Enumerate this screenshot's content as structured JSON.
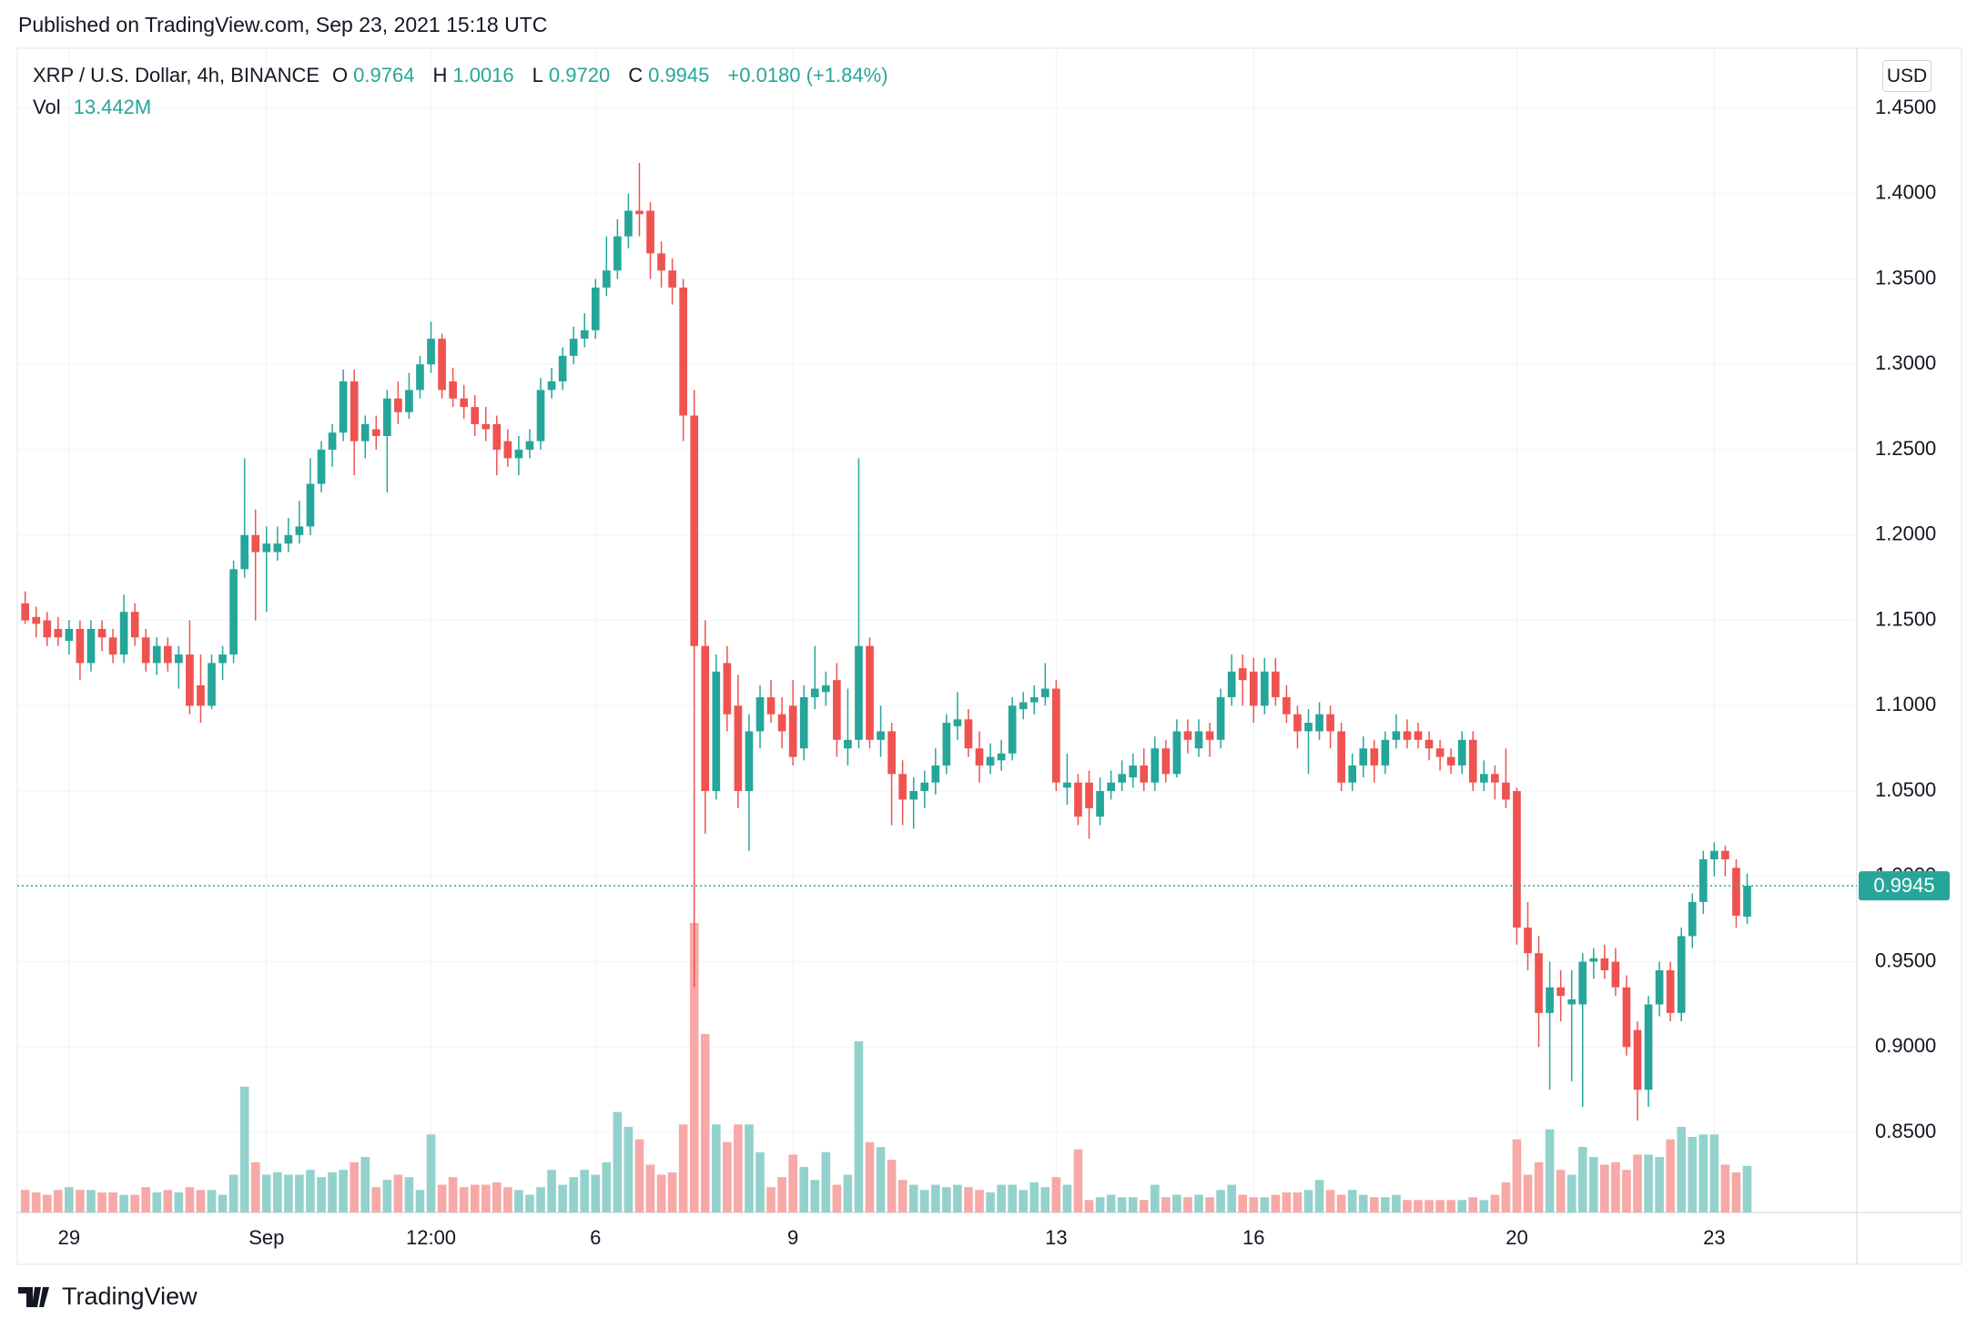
{
  "header": {
    "published": "Published on TradingView.com, Sep 23, 2021 15:18 UTC",
    "symbol": "XRP / U.S. Dollar, 4h, BINANCE",
    "open_label": "O",
    "open": "0.9764",
    "high_label": "H",
    "high": "1.0016",
    "low_label": "L",
    "low": "0.9720",
    "close_label": "C",
    "close": "0.9945",
    "change": "+0.0180 (+1.84%)",
    "vol_label": "Vol",
    "vol": "13.442M",
    "currency": "USD",
    "brand": "TradingView"
  },
  "chart_data": {
    "type": "candlestick",
    "up_color": "#26a69a",
    "down_color": "#ef5350",
    "up_volume_color": "#93d2cc",
    "down_volume_color": "#f7a9a7",
    "grid": true,
    "xlim": [
      -0.72,
      167
    ],
    "ylim": [
      0.8031,
      1.4852
    ],
    "xticks": [
      {
        "value": 4,
        "label": "29"
      },
      {
        "value": 22,
        "label": "Sep"
      },
      {
        "value": 37,
        "label": "12:00"
      },
      {
        "value": 52,
        "label": "6"
      },
      {
        "value": 70,
        "label": "9"
      },
      {
        "value": 94,
        "label": "13"
      },
      {
        "value": 112,
        "label": "16"
      },
      {
        "value": 136,
        "label": "20"
      },
      {
        "value": 154,
        "label": "23"
      }
    ],
    "yticks": [
      {
        "value": 0.85,
        "label": "0.8500"
      },
      {
        "value": 0.9,
        "label": "0.9000"
      },
      {
        "value": 0.95,
        "label": "0.9500"
      },
      {
        "value": 1.0,
        "label": "1.0000"
      },
      {
        "value": 1.05,
        "label": "1.0500"
      },
      {
        "value": 1.1,
        "label": "1.1000"
      },
      {
        "value": 1.15,
        "label": "1.1500"
      },
      {
        "value": 1.2,
        "label": "1.2000"
      },
      {
        "value": 1.25,
        "label": "1.2500"
      },
      {
        "value": 1.3,
        "label": "1.3000"
      },
      {
        "value": 1.35,
        "label": "1.3500"
      },
      {
        "value": 1.4,
        "label": "1.4000"
      },
      {
        "value": 1.45,
        "label": "1.4500"
      }
    ],
    "last_price": {
      "value": 0.9945,
      "label": "0.9945"
    },
    "candles": [
      [
        1.16,
        1.167,
        1.148,
        1.15
      ],
      [
        1.152,
        1.158,
        1.14,
        1.148
      ],
      [
        1.15,
        1.155,
        1.135,
        1.14
      ],
      [
        1.145,
        1.152,
        1.135,
        1.14
      ],
      [
        1.138,
        1.15,
        1.13,
        1.145
      ],
      [
        1.145,
        1.15,
        1.115,
        1.125
      ],
      [
        1.125,
        1.15,
        1.12,
        1.145
      ],
      [
        1.145,
        1.15,
        1.132,
        1.14
      ],
      [
        1.14,
        1.145,
        1.125,
        1.13
      ],
      [
        1.13,
        1.165,
        1.125,
        1.155
      ],
      [
        1.155,
        1.16,
        1.135,
        1.14
      ],
      [
        1.14,
        1.145,
        1.12,
        1.125
      ],
      [
        1.125,
        1.14,
        1.118,
        1.135
      ],
      [
        1.135,
        1.14,
        1.12,
        1.125
      ],
      [
        1.125,
        1.135,
        1.11,
        1.13
      ],
      [
        1.13,
        1.15,
        1.095,
        1.1
      ],
      [
        1.112,
        1.13,
        1.09,
        1.1
      ],
      [
        1.1,
        1.13,
        1.098,
        1.125
      ],
      [
        1.125,
        1.135,
        1.115,
        1.13
      ],
      [
        1.13,
        1.185,
        1.125,
        1.18
      ],
      [
        1.18,
        1.245,
        1.175,
        1.2
      ],
      [
        1.2,
        1.215,
        1.15,
        1.19
      ],
      [
        1.19,
        1.205,
        1.155,
        1.195
      ],
      [
        1.19,
        1.205,
        1.185,
        1.195
      ],
      [
        1.195,
        1.21,
        1.19,
        1.2
      ],
      [
        1.2,
        1.22,
        1.195,
        1.205
      ],
      [
        1.205,
        1.245,
        1.2,
        1.23
      ],
      [
        1.23,
        1.255,
        1.225,
        1.25
      ],
      [
        1.25,
        1.265,
        1.24,
        1.26
      ],
      [
        1.26,
        1.297,
        1.255,
        1.29
      ],
      [
        1.29,
        1.297,
        1.235,
        1.255
      ],
      [
        1.255,
        1.27,
        1.245,
        1.265
      ],
      [
        1.262,
        1.27,
        1.25,
        1.258
      ],
      [
        1.258,
        1.285,
        1.225,
        1.28
      ],
      [
        1.28,
        1.29,
        1.265,
        1.272
      ],
      [
        1.272,
        1.295,
        1.268,
        1.285
      ],
      [
        1.285,
        1.305,
        1.28,
        1.3
      ],
      [
        1.3,
        1.325,
        1.295,
        1.315
      ],
      [
        1.315,
        1.318,
        1.28,
        1.285
      ],
      [
        1.29,
        1.298,
        1.275,
        1.28
      ],
      [
        1.28,
        1.288,
        1.268,
        1.275
      ],
      [
        1.275,
        1.282,
        1.258,
        1.265
      ],
      [
        1.265,
        1.275,
        1.255,
        1.262
      ],
      [
        1.265,
        1.27,
        1.235,
        1.25
      ],
      [
        1.255,
        1.262,
        1.24,
        1.245
      ],
      [
        1.245,
        1.258,
        1.235,
        1.25
      ],
      [
        1.25,
        1.262,
        1.245,
        1.255
      ],
      [
        1.255,
        1.292,
        1.25,
        1.285
      ],
      [
        1.285,
        1.298,
        1.28,
        1.29
      ],
      [
        1.29,
        1.31,
        1.285,
        1.305
      ],
      [
        1.305,
        1.322,
        1.3,
        1.315
      ],
      [
        1.315,
        1.33,
        1.31,
        1.32
      ],
      [
        1.32,
        1.35,
        1.315,
        1.345
      ],
      [
        1.345,
        1.375,
        1.34,
        1.355
      ],
      [
        1.355,
        1.385,
        1.35,
        1.375
      ],
      [
        1.375,
        1.4,
        1.368,
        1.39
      ],
      [
        1.39,
        1.418,
        1.375,
        1.388
      ],
      [
        1.39,
        1.395,
        1.35,
        1.365
      ],
      [
        1.365,
        1.372,
        1.345,
        1.355
      ],
      [
        1.355,
        1.362,
        1.335,
        1.345
      ],
      [
        1.345,
        1.35,
        1.255,
        1.27
      ],
      [
        1.27,
        1.285,
        0.935,
        1.135
      ],
      [
        1.135,
        1.15,
        1.025,
        1.05
      ],
      [
        1.05,
        1.13,
        1.045,
        1.12
      ],
      [
        1.125,
        1.135,
        1.085,
        1.095
      ],
      [
        1.1,
        1.118,
        1.04,
        1.05
      ],
      [
        1.05,
        1.095,
        1.015,
        1.085
      ],
      [
        1.085,
        1.112,
        1.075,
        1.105
      ],
      [
        1.105,
        1.115,
        1.09,
        1.095
      ],
      [
        1.095,
        1.105,
        1.075,
        1.085
      ],
      [
        1.1,
        1.115,
        1.065,
        1.07
      ],
      [
        1.075,
        1.112,
        1.068,
        1.105
      ],
      [
        1.105,
        1.135,
        1.098,
        1.11
      ],
      [
        1.108,
        1.12,
        1.1,
        1.112
      ],
      [
        1.115,
        1.125,
        1.07,
        1.08
      ],
      [
        1.075,
        1.11,
        1.065,
        1.08
      ],
      [
        1.08,
        1.245,
        1.075,
        1.135
      ],
      [
        1.135,
        1.14,
        1.075,
        1.08
      ],
      [
        1.08,
        1.1,
        1.07,
        1.085
      ],
      [
        1.085,
        1.09,
        1.03,
        1.06
      ],
      [
        1.06,
        1.068,
        1.03,
        1.045
      ],
      [
        1.045,
        1.058,
        1.028,
        1.05
      ],
      [
        1.05,
        1.062,
        1.04,
        1.055
      ],
      [
        1.055,
        1.075,
        1.048,
        1.065
      ],
      [
        1.065,
        1.095,
        1.06,
        1.09
      ],
      [
        1.088,
        1.108,
        1.08,
        1.092
      ],
      [
        1.092,
        1.098,
        1.07,
        1.075
      ],
      [
        1.075,
        1.085,
        1.055,
        1.065
      ],
      [
        1.065,
        1.078,
        1.06,
        1.07
      ],
      [
        1.068,
        1.08,
        1.062,
        1.072
      ],
      [
        1.072,
        1.105,
        1.068,
        1.1
      ],
      [
        1.098,
        1.108,
        1.092,
        1.102
      ],
      [
        1.102,
        1.112,
        1.095,
        1.105
      ],
      [
        1.105,
        1.125,
        1.1,
        1.11
      ],
      [
        1.11,
        1.115,
        1.05,
        1.055
      ],
      [
        1.052,
        1.072,
        1.042,
        1.055
      ],
      [
        1.055,
        1.06,
        1.03,
        1.035
      ],
      [
        1.055,
        1.062,
        1.022,
        1.04
      ],
      [
        1.035,
        1.058,
        1.03,
        1.05
      ],
      [
        1.05,
        1.062,
        1.045,
        1.055
      ],
      [
        1.055,
        1.068,
        1.05,
        1.06
      ],
      [
        1.058,
        1.072,
        1.052,
        1.065
      ],
      [
        1.065,
        1.075,
        1.05,
        1.055
      ],
      [
        1.055,
        1.082,
        1.05,
        1.075
      ],
      [
        1.075,
        1.08,
        1.055,
        1.06
      ],
      [
        1.06,
        1.092,
        1.058,
        1.085
      ],
      [
        1.085,
        1.092,
        1.072,
        1.08
      ],
      [
        1.075,
        1.092,
        1.07,
        1.085
      ],
      [
        1.085,
        1.09,
        1.07,
        1.08
      ],
      [
        1.08,
        1.11,
        1.075,
        1.105
      ],
      [
        1.105,
        1.13,
        1.1,
        1.12
      ],
      [
        1.122,
        1.13,
        1.1,
        1.115
      ],
      [
        1.12,
        1.128,
        1.09,
        1.1
      ],
      [
        1.1,
        1.128,
        1.095,
        1.12
      ],
      [
        1.12,
        1.128,
        1.1,
        1.105
      ],
      [
        1.105,
        1.112,
        1.09,
        1.095
      ],
      [
        1.095,
        1.1,
        1.075,
        1.085
      ],
      [
        1.085,
        1.098,
        1.06,
        1.09
      ],
      [
        1.085,
        1.102,
        1.08,
        1.095
      ],
      [
        1.095,
        1.1,
        1.075,
        1.085
      ],
      [
        1.085,
        1.09,
        1.05,
        1.055
      ],
      [
        1.055,
        1.072,
        1.05,
        1.065
      ],
      [
        1.065,
        1.082,
        1.058,
        1.075
      ],
      [
        1.075,
        1.08,
        1.055,
        1.065
      ],
      [
        1.065,
        1.085,
        1.06,
        1.08
      ],
      [
        1.08,
        1.095,
        1.075,
        1.085
      ],
      [
        1.085,
        1.092,
        1.075,
        1.08
      ],
      [
        1.085,
        1.09,
        1.075,
        1.08
      ],
      [
        1.08,
        1.085,
        1.068,
        1.075
      ],
      [
        1.075,
        1.08,
        1.062,
        1.07
      ],
      [
        1.07,
        1.075,
        1.06,
        1.065
      ],
      [
        1.065,
        1.085,
        1.06,
        1.08
      ],
      [
        1.08,
        1.085,
        1.05,
        1.055
      ],
      [
        1.055,
        1.068,
        1.05,
        1.06
      ],
      [
        1.06,
        1.065,
        1.045,
        1.055
      ],
      [
        1.055,
        1.075,
        1.04,
        1.045
      ],
      [
        1.05,
        1.052,
        0.96,
        0.97
      ],
      [
        0.97,
        0.985,
        0.945,
        0.955
      ],
      [
        0.955,
        0.965,
        0.9,
        0.92
      ],
      [
        0.92,
        0.95,
        0.875,
        0.935
      ],
      [
        0.935,
        0.945,
        0.915,
        0.93
      ],
      [
        0.925,
        0.945,
        0.88,
        0.928
      ],
      [
        0.925,
        0.955,
        0.865,
        0.95
      ],
      [
        0.95,
        0.958,
        0.94,
        0.952
      ],
      [
        0.952,
        0.96,
        0.94,
        0.945
      ],
      [
        0.95,
        0.958,
        0.93,
        0.935
      ],
      [
        0.935,
        0.942,
        0.895,
        0.9
      ],
      [
        0.91,
        0.915,
        0.857,
        0.875
      ],
      [
        0.875,
        0.93,
        0.865,
        0.925
      ],
      [
        0.925,
        0.95,
        0.918,
        0.945
      ],
      [
        0.945,
        0.95,
        0.915,
        0.92
      ],
      [
        0.92,
        0.97,
        0.915,
        0.965
      ],
      [
        0.965,
        0.99,
        0.958,
        0.985
      ],
      [
        0.985,
        1.015,
        0.978,
        1.01
      ],
      [
        1.01,
        1.02,
        1.0,
        1.015
      ],
      [
        1.015,
        1.018,
        1.0,
        1.01
      ],
      [
        1.005,
        1.01,
        0.97,
        0.977
      ],
      [
        0.9764,
        1.0016,
        0.972,
        0.9945
      ]
    ],
    "volume": [
      6.5,
      5.8,
      5.1,
      6.5,
      7.3,
      6.5,
      6.5,
      5.8,
      5.8,
      5.1,
      5.1,
      7.3,
      5.8,
      6.5,
      5.8,
      7.3,
      6.5,
      6.5,
      5.1,
      10.9,
      36.3,
      14.5,
      10.9,
      11.6,
      10.9,
      10.9,
      12.3,
      10.2,
      11.6,
      12.3,
      14.5,
      16.0,
      7.3,
      9.4,
      10.9,
      10.2,
      6.5,
      22.5,
      8.0,
      10.2,
      7.3,
      8.0,
      8.0,
      8.7,
      7.3,
      6.5,
      5.1,
      7.3,
      12.3,
      8.0,
      10.2,
      12.3,
      10.9,
      14.5,
      29.0,
      24.7,
      21.1,
      13.8,
      10.9,
      11.6,
      25.4,
      83.5,
      51.5,
      25.4,
      20.3,
      25.4,
      25.4,
      17.4,
      7.3,
      10.2,
      16.7,
      13.1,
      9.4,
      17.4,
      8.0,
      10.9,
      49.4,
      20.3,
      18.9,
      15.2,
      9.4,
      8.0,
      6.5,
      8.0,
      7.3,
      8.0,
      7.3,
      6.5,
      5.8,
      8.0,
      8.0,
      6.5,
      8.7,
      7.3,
      10.2,
      8.0,
      18.2,
      3.6,
      4.4,
      5.1,
      4.4,
      4.4,
      3.6,
      8.0,
      4.4,
      5.1,
      4.4,
      5.1,
      4.4,
      6.5,
      8.0,
      5.1,
      4.4,
      4.4,
      5.1,
      5.8,
      5.8,
      6.5,
      9.4,
      6.5,
      5.1,
      6.5,
      5.1,
      4.4,
      4.4,
      5.1,
      3.6,
      3.6,
      3.6,
      3.6,
      3.6,
      3.6,
      4.4,
      3.6,
      5.1,
      8.7,
      21.1,
      10.9,
      14.5,
      24.0,
      12.3,
      10.9,
      18.9,
      16.0,
      13.8,
      14.5,
      12.3,
      16.7,
      16.7,
      16.0,
      21.1,
      24.7,
      21.8,
      22.5,
      22.5,
      13.8,
      11.6,
      13.442
    ]
  }
}
